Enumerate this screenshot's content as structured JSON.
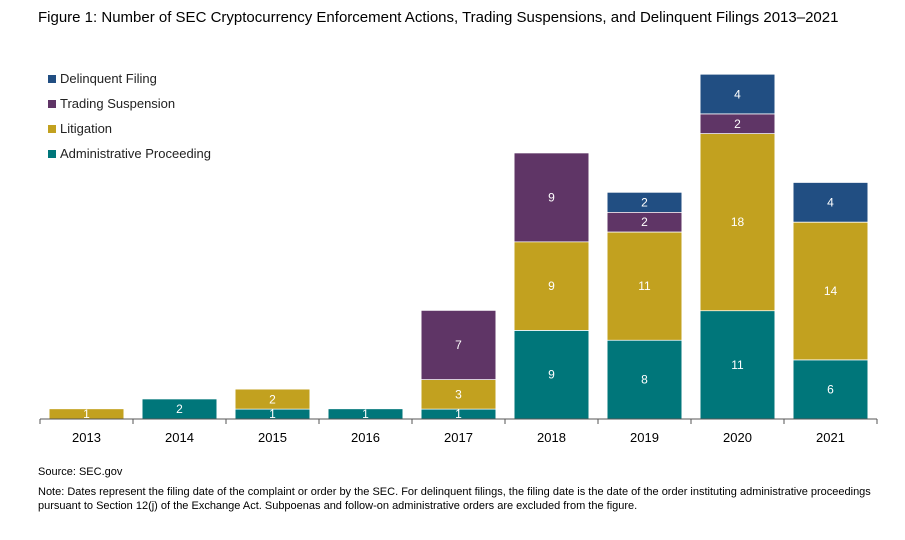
{
  "title": "Figure 1: Number of SEC Cryptocurrency Enforcement Actions, Trading Suspensions, and Delinquent Filings 2013–2021",
  "source": "Source: SEC.gov",
  "note": "Note: Dates represent the filing date of the complaint or order by the SEC. For delinquent filings, the filing date is the date of the order instituting administrative proceedings pursuant to Section 12(j) of the Exchange Act. Subpoenas and follow-on administrative orders are excluded from the figure.",
  "chart_data": {
    "type": "bar",
    "stacked": true,
    "categories": [
      "2013",
      "2014",
      "2015",
      "2016",
      "2017",
      "2018",
      "2019",
      "2020",
      "2021"
    ],
    "series": [
      {
        "name": "Administrative Proceeding",
        "color": "#00767A",
        "label_color": "#ffffff",
        "values": [
          0,
          2,
          1,
          1,
          1,
          9,
          8,
          11,
          6
        ]
      },
      {
        "name": "Litigation",
        "color": "#C2A11F",
        "label_color": "#ffffff",
        "values": [
          1,
          0,
          2,
          0,
          3,
          9,
          11,
          18,
          14
        ]
      },
      {
        "name": "Trading Suspension",
        "color": "#5F3566",
        "label_color": "#ffffff",
        "values": [
          0,
          0,
          0,
          0,
          7,
          9,
          2,
          2,
          0
        ]
      },
      {
        "name": "Delinquent Filing",
        "color": "#214E82",
        "label_color": "#ffffff",
        "values": [
          0,
          0,
          0,
          0,
          0,
          0,
          2,
          4,
          4
        ]
      }
    ],
    "legend_order": [
      "Delinquent Filing",
      "Trading Suspension",
      "Litigation",
      "Administrative Proceeding"
    ],
    "legend_position": "top-left",
    "ylim": [
      0,
      35
    ],
    "grid": false
  }
}
